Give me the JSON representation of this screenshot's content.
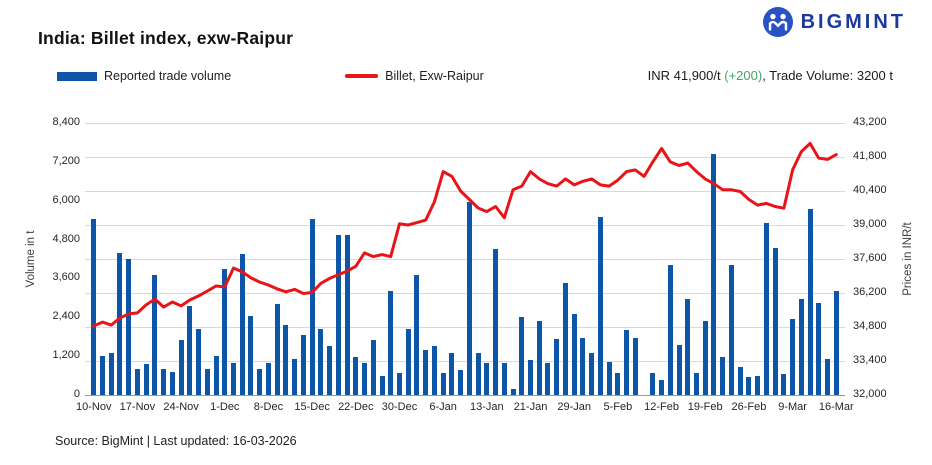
{
  "header": {
    "title": "India: Billet index, exw-Raipur",
    "logo_text": "BIGMINT"
  },
  "legend": [
    {
      "label": "Reported trade volume",
      "color": "#0d55a6",
      "type": "bar"
    },
    {
      "label": "Billet, Exw-Raipur",
      "color": "#e81418",
      "type": "line"
    }
  ],
  "summary": {
    "price": "INR 41,900/t ",
    "change": "(+200)",
    "rest": ", Trade Volume: 3200 t",
    "change_color": "#3fa768"
  },
  "footer": {
    "text": "Source: BigMint | Last updated: 16-03-2026"
  },
  "colors": {
    "bar": "#0d55a6",
    "line": "#e81418",
    "grid": "#d9d9d9",
    "axis": "#9a9a9a",
    "logo_circle": "#2a52c5",
    "logo_text": "#1c3a9e"
  },
  "chart_data": {
    "type": "bar+line",
    "title": "India: Billet index, exw-Raipur",
    "x_tick_labels": [
      "10-Nov",
      "17-Nov",
      "24-Nov",
      "1-Dec",
      "8-Dec",
      "15-Dec",
      "22-Dec",
      "30-Dec",
      "6-Jan",
      "13-Jan",
      "21-Jan",
      "29-Jan",
      "5-Feb",
      "12-Feb",
      "19-Feb",
      "26-Feb",
      "9-Mar",
      "16-Mar"
    ],
    "x_tick_every": 5,
    "grid": "horizontal",
    "legend_position": "top-left",
    "left_axis": {
      "title": "Volume in t",
      "min": 0,
      "max": 8400,
      "tick_step": 1200,
      "tick_labels": [
        "0",
        "1,200",
        "2,400",
        "3,600",
        "4,800",
        "6,000",
        "7,200",
        "8,400"
      ]
    },
    "right_axis": {
      "title": "Prices in INR/t",
      "min": 32000,
      "max": 43200,
      "tick_step": 1400,
      "tick_labels": [
        "32,000",
        "33,400",
        "34,800",
        "36,200",
        "37,600",
        "39,000",
        "40,400",
        "41,800",
        "43,200"
      ]
    },
    "series": [
      {
        "name": "Reported trade volume",
        "type": "bar",
        "axis": "left",
        "color": "#0d55a6",
        "values": [
          5450,
          1200,
          1300,
          4400,
          4200,
          800,
          950,
          3700,
          800,
          700,
          1700,
          2750,
          2050,
          800,
          1200,
          3900,
          1000,
          4350,
          2450,
          800,
          1000,
          2800,
          2150,
          1100,
          1850,
          5450,
          2050,
          1500,
          4950,
          4950,
          1180,
          1000,
          1700,
          600,
          3200,
          670,
          2050,
          3700,
          1400,
          1500,
          670,
          1300,
          770,
          5950,
          1290,
          980,
          4500,
          980,
          200,
          2400,
          1080,
          2300,
          980,
          1720,
          3470,
          2490,
          1750,
          1290,
          5500,
          1030,
          670,
          2000,
          1770,
          0,
          670,
          450,
          4000,
          1550,
          2950,
          670,
          2300,
          7450,
          1160,
          4000,
          875,
          550,
          600,
          5300,
          4550,
          650,
          2350,
          2950,
          5750,
          2850,
          1100,
          3200
        ]
      },
      {
        "name": "Billet, Exw-Raipur",
        "type": "line",
        "axis": "right",
        "color": "#e81418",
        "values": [
          34840,
          35000,
          34880,
          35170,
          35340,
          35380,
          35710,
          35950,
          35620,
          35830,
          35670,
          35910,
          36080,
          36280,
          36490,
          36450,
          37230,
          37070,
          36820,
          36650,
          36530,
          36370,
          36250,
          36350,
          36180,
          36220,
          36600,
          36800,
          36950,
          37100,
          37300,
          37850,
          37700,
          37780,
          37700,
          39050,
          39000,
          39100,
          39200,
          39950,
          41200,
          41000,
          40400,
          40050,
          39700,
          39550,
          39760,
          39300,
          40450,
          40600,
          41200,
          40900,
          40700,
          40600,
          40900,
          40650,
          40800,
          40900,
          40650,
          40600,
          40850,
          41200,
          41270,
          41000,
          41600,
          42150,
          41600,
          41450,
          41550,
          41200,
          40900,
          40700,
          40450,
          40450,
          40380,
          40050,
          39820,
          39890,
          39760,
          39690,
          41270,
          42020,
          42360,
          41750,
          41700,
          41900
        ]
      }
    ]
  }
}
